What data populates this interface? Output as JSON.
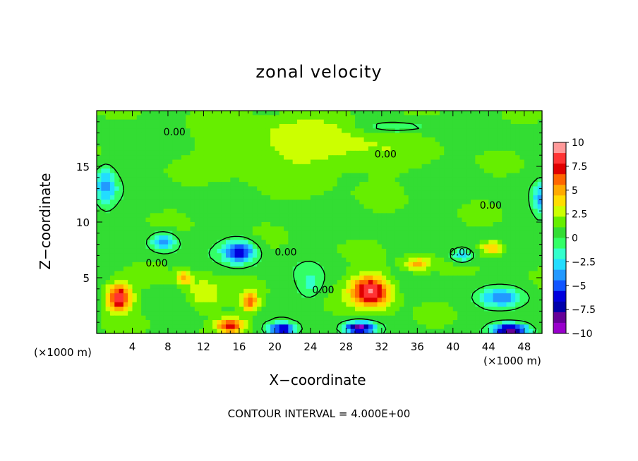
{
  "chart_data": {
    "type": "heatmap",
    "title": "zonal velocity",
    "xlabel": "X−coordinate",
    "ylabel": "Z−coordinate",
    "x_unit_note": "(×1000 m)",
    "footer": "CONTOUR INTERVAL = 4.000E+00",
    "xlim": [
      0,
      50
    ],
    "ylim": [
      0,
      20
    ],
    "x_ticks": [
      "4",
      "8",
      "12",
      "16",
      "20",
      "24",
      "28",
      "32",
      "36",
      "40",
      "44",
      "48"
    ],
    "x_tick_values": [
      4,
      8,
      12,
      16,
      20,
      24,
      28,
      32,
      36,
      40,
      44,
      48
    ],
    "y_ticks": [
      "5",
      "10",
      "15"
    ],
    "y_tick_values": [
      5,
      10,
      15
    ],
    "contour_label": "0.00",
    "colorbar": {
      "min": -10,
      "max": 10,
      "tick_labels": [
        "10",
        "7.5",
        "5",
        "2.5",
        "0",
        "−2.5",
        "−5",
        "−7.5",
        "−10"
      ],
      "tick_values": [
        10,
        7.5,
        5,
        2.5,
        0,
        -2.5,
        -5,
        -7.5,
        -10
      ],
      "colors": [
        "#ff9999",
        "#ff3333",
        "#e00000",
        "#ff6600",
        "#ffaa00",
        "#ffdd00",
        "#ccff00",
        "#66ee00",
        "#33dd33",
        "#33ff66",
        "#33ffcc",
        "#22ddff",
        "#2299ff",
        "#1155ff",
        "#0000dd",
        "#0000aa",
        "#660099",
        "#9900cc"
      ]
    },
    "field_features": [
      {
        "x": 2.5,
        "z": 3.2,
        "sx": 1.4,
        "sz": 1.2,
        "value": 8
      },
      {
        "x": 30.8,
        "z": 3.8,
        "sx": 2.2,
        "sz": 1.4,
        "value": 8.5
      },
      {
        "x": 16.0,
        "z": 7.3,
        "sx": 1.8,
        "sz": 1.0,
        "value": -7
      },
      {
        "x": 7.5,
        "z": 8.2,
        "sx": 1.4,
        "sz": 0.8,
        "value": -4.5
      },
      {
        "x": 1.0,
        "z": 13.2,
        "sx": 1.2,
        "sz": 1.8,
        "value": -4.5
      },
      {
        "x": 20.8,
        "z": 0.4,
        "sx": 1.4,
        "sz": 0.5,
        "value": -8
      },
      {
        "x": 29.5,
        "z": 0.5,
        "sx": 1.6,
        "sz": 0.5,
        "value": -10
      },
      {
        "x": 46.5,
        "z": 0.3,
        "sx": 2.0,
        "sz": 0.6,
        "value": -10
      },
      {
        "x": 45.5,
        "z": 3.2,
        "sx": 2.2,
        "sz": 0.8,
        "value": -5
      },
      {
        "x": 41.0,
        "z": 7.0,
        "sx": 1.2,
        "sz": 0.6,
        "value": -4
      },
      {
        "x": 36.0,
        "z": 6.2,
        "sx": 1.5,
        "sz": 0.6,
        "value": 4
      },
      {
        "x": 44.5,
        "z": 7.7,
        "sx": 1.3,
        "sz": 0.6,
        "value": 4
      },
      {
        "x": 15.0,
        "z": 0.7,
        "sx": 1.5,
        "sz": 0.6,
        "value": 7
      },
      {
        "x": 17.2,
        "z": 2.8,
        "sx": 1.0,
        "sz": 0.9,
        "value": 5
      },
      {
        "x": 9.8,
        "z": 5.0,
        "sx": 0.8,
        "sz": 0.6,
        "value": 4
      },
      {
        "x": 24.5,
        "z": 17.0,
        "sx": 10.0,
        "sz": 3.0,
        "value": 2
      },
      {
        "x": 12.0,
        "z": 3.5,
        "sx": 2.0,
        "sz": 1.5,
        "value": 2.5
      },
      {
        "x": 24.0,
        "z": 4.5,
        "sx": 1.5,
        "sz": 1.5,
        "value": -2
      },
      {
        "x": 49.8,
        "z": 12.0,
        "sx": 0.8,
        "sz": 1.5,
        "value": -4
      },
      {
        "x": 33.5,
        "z": 18.5,
        "sx": 4.0,
        "sz": 0.6,
        "value": -2
      }
    ]
  }
}
